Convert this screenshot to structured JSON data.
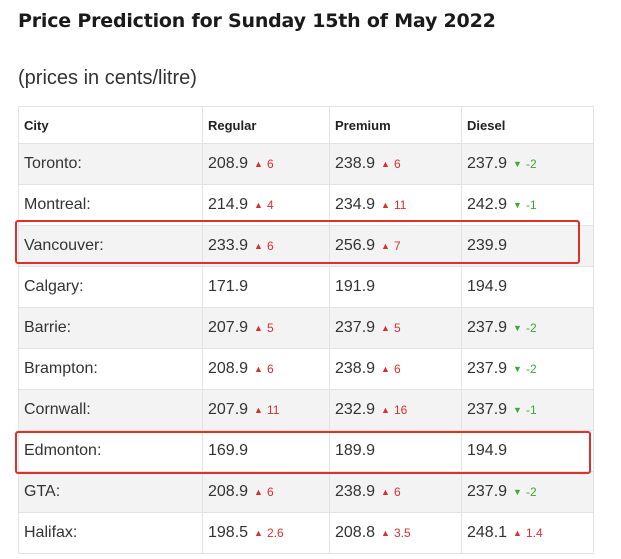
{
  "page": {
    "title": "Price Prediction for Sunday 15th of May 2022",
    "subtitle": "(prices in cents/litre)"
  },
  "table": {
    "headers": {
      "city": "City",
      "regular": "Regular",
      "premium": "Premium",
      "diesel": "Diesel"
    },
    "rows": [
      {
        "city": "Toronto:",
        "regular": {
          "value": "208.9",
          "change": "6",
          "dir": "up"
        },
        "premium": {
          "value": "238.9",
          "change": "6",
          "dir": "up"
        },
        "diesel": {
          "value": "237.9",
          "change": "-2",
          "dir": "down"
        }
      },
      {
        "city": "Montreal:",
        "regular": {
          "value": "214.9",
          "change": "4",
          "dir": "up"
        },
        "premium": {
          "value": "234.9",
          "change": "11",
          "dir": "up"
        },
        "diesel": {
          "value": "242.9",
          "change": "-1",
          "dir": "down"
        }
      },
      {
        "city": "Vancouver:",
        "regular": {
          "value": "233.9",
          "change": "6",
          "dir": "up"
        },
        "premium": {
          "value": "256.9",
          "change": "7",
          "dir": "up"
        },
        "diesel": {
          "value": "239.9",
          "change": "",
          "dir": ""
        }
      },
      {
        "city": "Calgary:",
        "regular": {
          "value": "171.9",
          "change": "",
          "dir": ""
        },
        "premium": {
          "value": "191.9",
          "change": "",
          "dir": ""
        },
        "diesel": {
          "value": "194.9",
          "change": "",
          "dir": ""
        }
      },
      {
        "city": "Barrie:",
        "regular": {
          "value": "207.9",
          "change": "5",
          "dir": "up"
        },
        "premium": {
          "value": "237.9",
          "change": "5",
          "dir": "up"
        },
        "diesel": {
          "value": "237.9",
          "change": "-2",
          "dir": "down"
        }
      },
      {
        "city": "Brampton:",
        "regular": {
          "value": "208.9",
          "change": "6",
          "dir": "up"
        },
        "premium": {
          "value": "238.9",
          "change": "6",
          "dir": "up"
        },
        "diesel": {
          "value": "237.9",
          "change": "-2",
          "dir": "down"
        }
      },
      {
        "city": "Cornwall:",
        "regular": {
          "value": "207.9",
          "change": "11",
          "dir": "up"
        },
        "premium": {
          "value": "232.9",
          "change": "16",
          "dir": "up"
        },
        "diesel": {
          "value": "237.9",
          "change": "-1",
          "dir": "down"
        }
      },
      {
        "city": "Edmonton:",
        "regular": {
          "value": "169.9",
          "change": "",
          "dir": ""
        },
        "premium": {
          "value": "189.9",
          "change": "",
          "dir": ""
        },
        "diesel": {
          "value": "194.9",
          "change": "",
          "dir": ""
        }
      },
      {
        "city": "GTA:",
        "regular": {
          "value": "208.9",
          "change": "6",
          "dir": "up"
        },
        "premium": {
          "value": "238.9",
          "change": "6",
          "dir": "up"
        },
        "diesel": {
          "value": "237.9",
          "change": "-2",
          "dir": "down"
        }
      },
      {
        "city": "Halifax:",
        "regular": {
          "value": "198.5",
          "change": "2.6",
          "dir": "up"
        },
        "premium": {
          "value": "208.8",
          "change": "3.5",
          "dir": "up"
        },
        "diesel": {
          "value": "248.1",
          "change": "1.4",
          "dir": "up"
        }
      }
    ]
  },
  "icons": {
    "up": "triangle-up-icon",
    "down": "triangle-down-icon"
  },
  "colors": {
    "up": "#d9302f",
    "down": "#3aa83a",
    "highlight": "#e0302a"
  }
}
